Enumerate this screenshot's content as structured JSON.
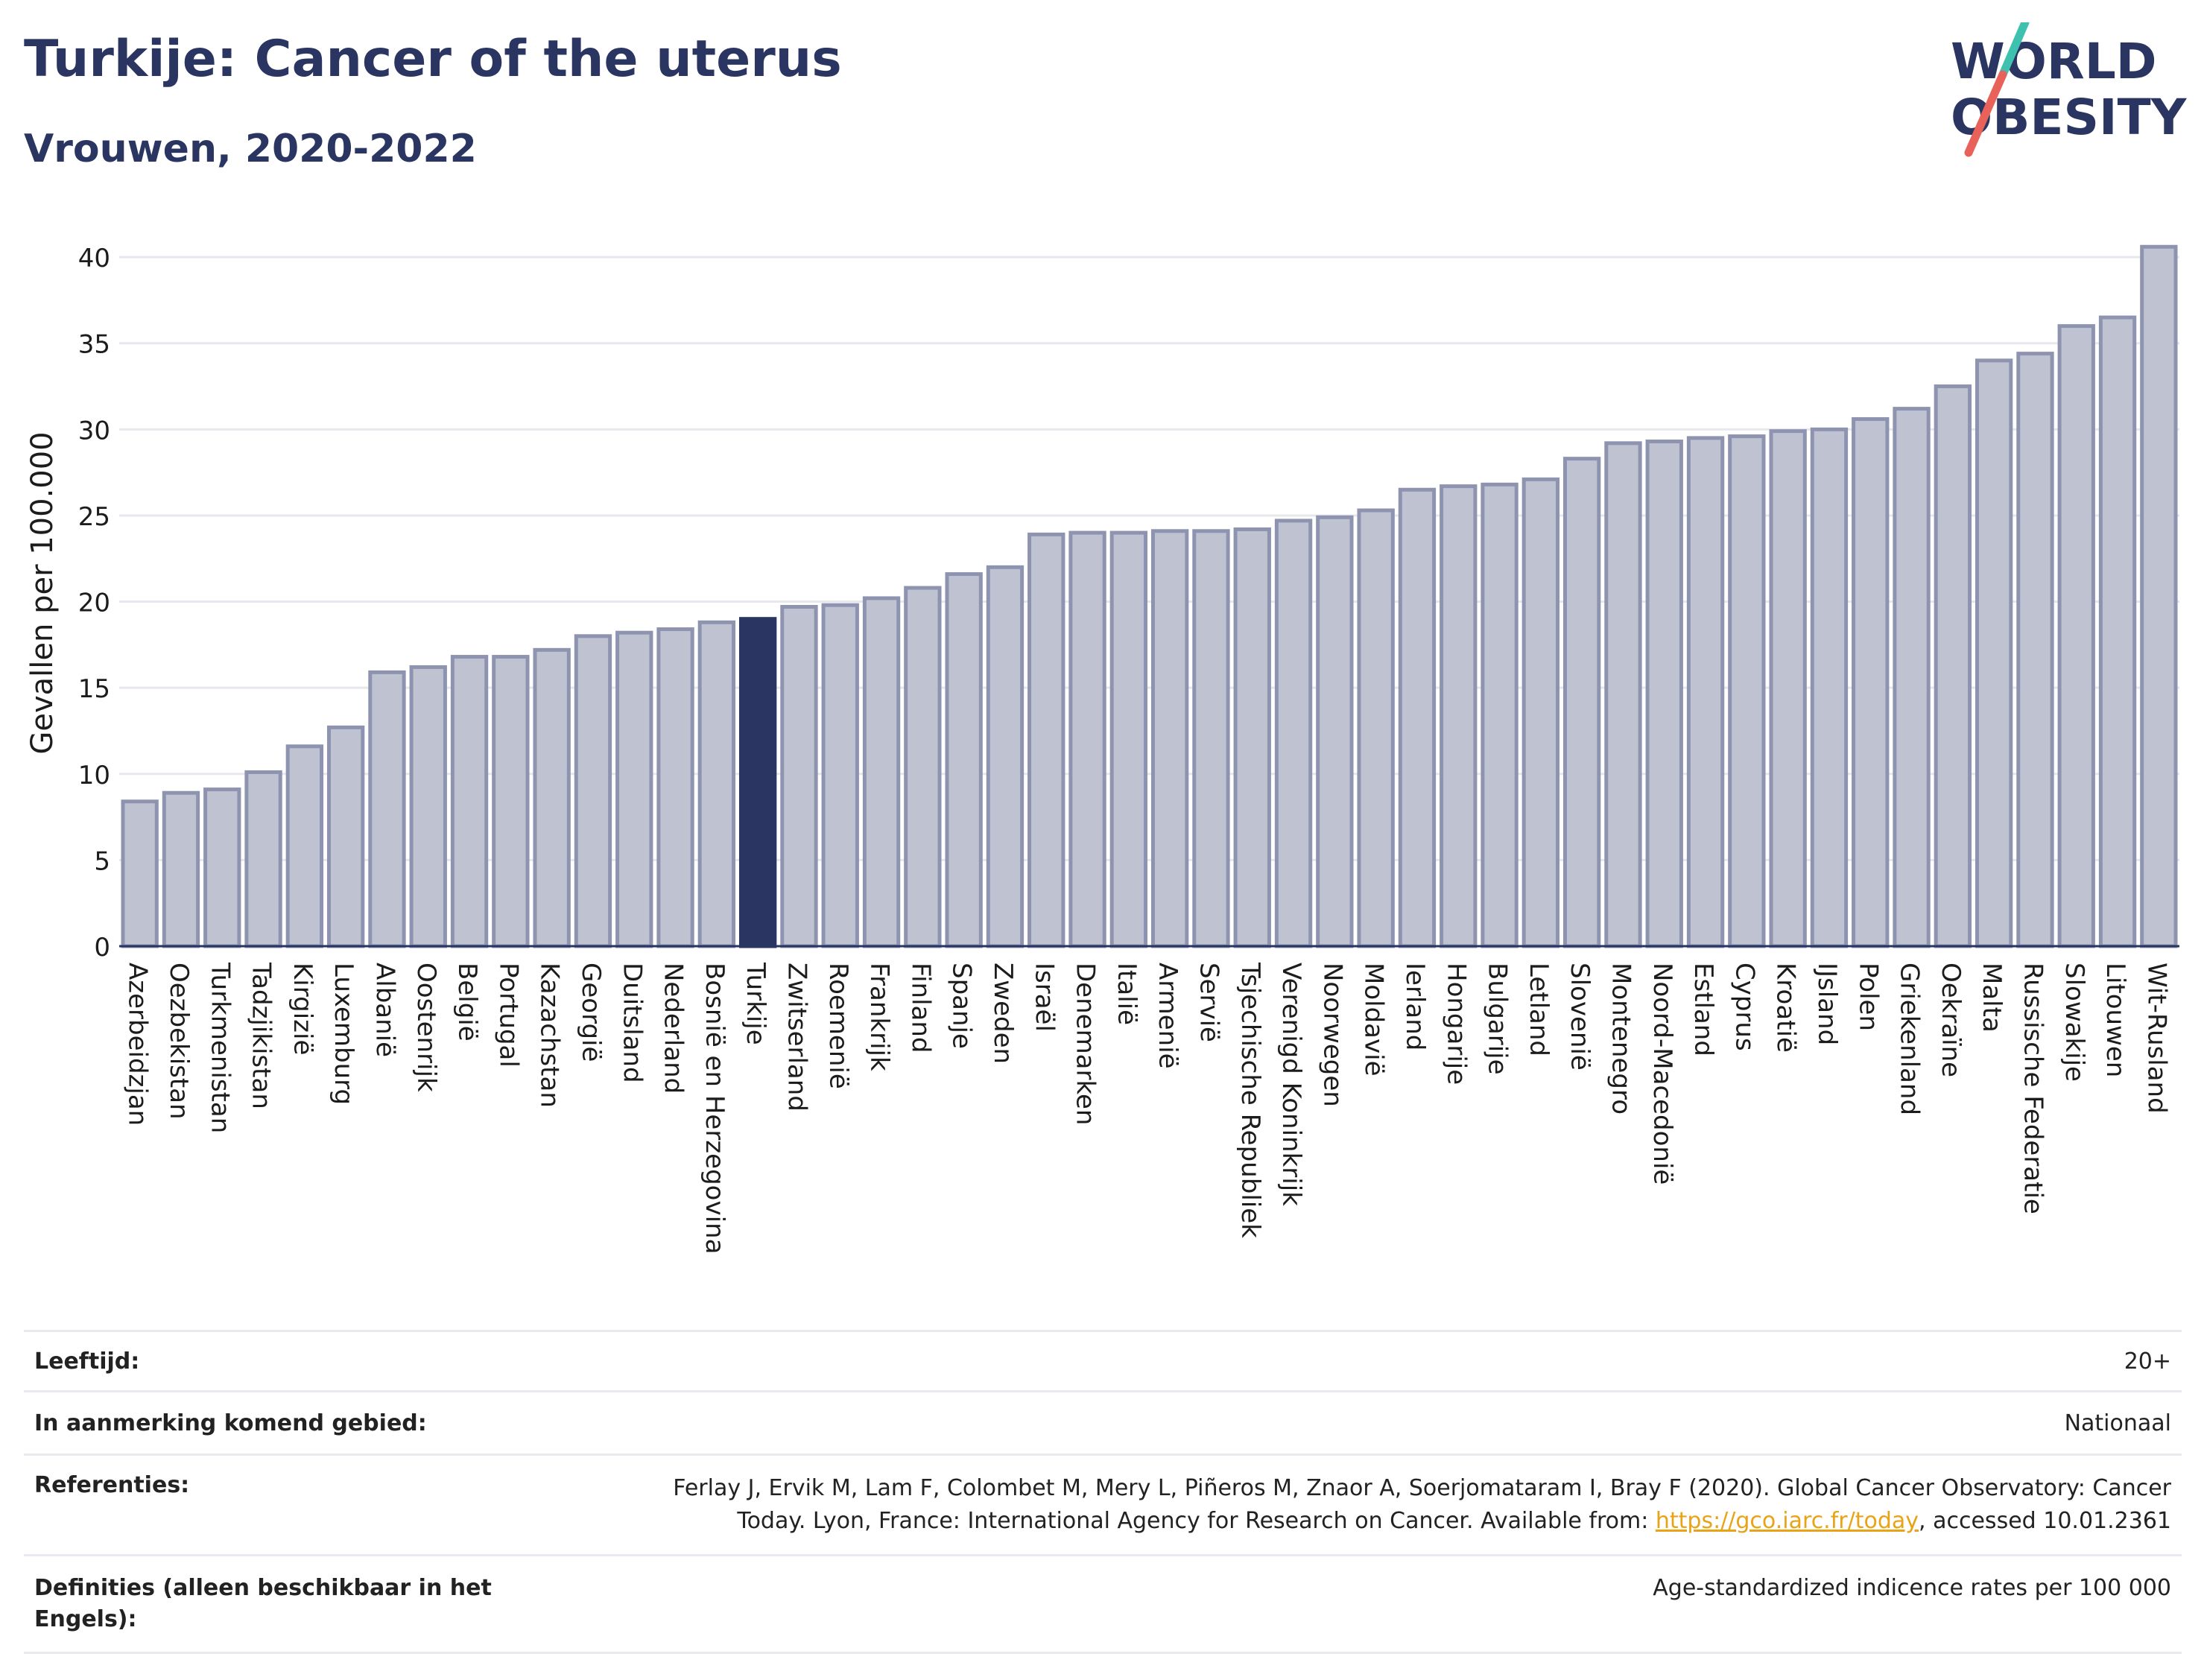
{
  "header": {
    "title": "Turkije: Cancer of the uterus",
    "subtitle": "Vrouwen, 2020-2022"
  },
  "logo": {
    "line1": "WORLD",
    "line2": "OBESITY",
    "colors": {
      "text": "#2a3561",
      "slash_top": "#3fc1b0",
      "slash_bottom": "#e8625a"
    }
  },
  "colors": {
    "bar_fill": "#bfc3d1",
    "bar_stroke": "#8e94b0",
    "highlight": "#2a3561",
    "grid": "#e6e8ee",
    "axis": "#2a3561"
  },
  "chart_data": {
    "type": "bar",
    "title": "Turkije: Cancer of the uterus",
    "subtitle": "Vrouwen, 2020-2022",
    "xlabel": "",
    "ylabel": "Gevallen per 100.000",
    "ylim": [
      0,
      41
    ],
    "yticks": [
      0,
      5,
      10,
      15,
      20,
      25,
      30,
      35,
      40
    ],
    "grid": true,
    "highlight": "Turkije",
    "categories": [
      "Azerbeidzjan",
      "Oezbekistan",
      "Turkmenistan",
      "Tadzjikistan",
      "Kirgizië",
      "Luxemburg",
      "Albanië",
      "Oostenrijk",
      "België",
      "Portugal",
      "Kazachstan",
      "Georgië",
      "Duitsland",
      "Nederland",
      "Bosnië en Herzegovina",
      "Turkije",
      "Zwitserland",
      "Roemenië",
      "Frankrijk",
      "Finland",
      "Spanje",
      "Zweden",
      "Israël",
      "Denemarken",
      "Italië",
      "Armenië",
      "Servië",
      "Tsjechische Republiek",
      "Verenigd Koninkrijk",
      "Noorwegen",
      "Moldavië",
      "Ierland",
      "Hongarije",
      "Bulgarije",
      "Letland",
      "Slovenië",
      "Montenegro",
      "Noord-Macedonië",
      "Estland",
      "Cyprus",
      "Kroatië",
      "IJsland",
      "Polen",
      "Griekenland",
      "Oekraïne",
      "Malta",
      "Russische Federatie",
      "Slowakije",
      "Litouwen",
      "Wit-Rusland"
    ],
    "values": [
      8.4,
      8.9,
      9.1,
      10.1,
      11.6,
      12.7,
      15.9,
      16.2,
      16.8,
      16.8,
      17.2,
      18.0,
      18.2,
      18.4,
      18.8,
      19.0,
      19.7,
      19.8,
      20.2,
      20.8,
      21.6,
      22.0,
      23.9,
      24.0,
      24.0,
      24.1,
      24.1,
      24.2,
      24.7,
      24.9,
      25.3,
      26.5,
      26.7,
      26.8,
      27.1,
      28.3,
      29.2,
      29.3,
      29.5,
      29.6,
      29.9,
      30.0,
      30.6,
      31.2,
      32.5,
      34.0,
      34.4,
      36.0,
      36.5,
      40.6
    ]
  },
  "info": {
    "rows": [
      {
        "label": "Leeftijd:",
        "value": "20+"
      },
      {
        "label": "In aanmerking komend gebied:",
        "value": "Nationaal"
      },
      {
        "label": "Referenties:",
        "value_pre": "Ferlay J, Ervik M, Lam F, Colombet M, Mery L, Piñeros M, Znaor A, Soerjomataram I, Bray F (2020). Global Cancer Observatory: Cancer Today. Lyon, France: International Agency for Research on Cancer. Available from: ",
        "link": "https://gco.iarc.fr/today",
        "value_post": ", accessed 10.01.2361"
      },
      {
        "label": "Definities (alleen beschikbaar in het Engels):",
        "value": "Age-standardized indicence rates per 100 000"
      }
    ]
  }
}
